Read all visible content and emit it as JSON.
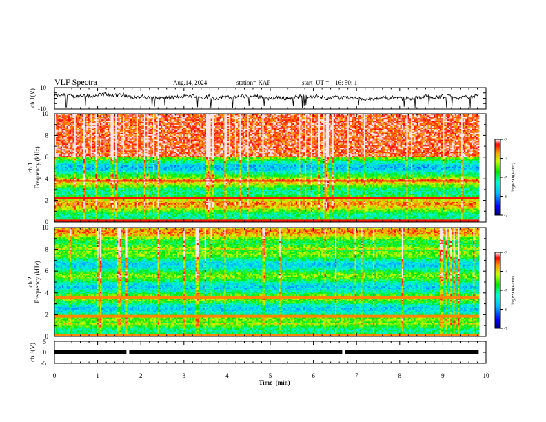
{
  "header": {
    "title": "VLF Spectra",
    "date": "Aug.14, 2024",
    "station": "station= KAP",
    "start": "start  UT =    16: 50: 1"
  },
  "chart_data": [
    {
      "type": "line",
      "panel": "ch1-waveform",
      "ylabel": "ch.1(V)",
      "ylim": [
        -10,
        10
      ],
      "yticks": [
        "10",
        "-10"
      ],
      "xlim": [
        0,
        10
      ],
      "x_end": 9.83,
      "note_series": "noisy waveform, approximately centered near 1 V with excursions to about -9 V"
    },
    {
      "type": "heatmap",
      "panel": "ch1-spectrogram",
      "ylabel_1": "ch.1",
      "ylabel_2": "Frequency (kHz)",
      "ylim": [
        0,
        10
      ],
      "yticks": [
        "0",
        "2",
        "4",
        "6",
        "8",
        "10"
      ],
      "xlim": [
        0,
        10
      ],
      "x_end": 9.83,
      "colorbar": {
        "label": "log(PSD)(V²/Hz)",
        "range": [
          -7,
          -3
        ],
        "ticks": [
          "-3",
          "-4",
          "-5",
          "-6",
          "-7"
        ]
      }
    },
    {
      "type": "heatmap",
      "panel": "ch2-spectrogram",
      "ylabel_1": "ch.2",
      "ylabel_2": "Frequency (kHz)",
      "ylim": [
        0,
        10
      ],
      "yticks": [
        "0",
        "2",
        "4",
        "6",
        "8",
        "10"
      ],
      "xlim": [
        0,
        10
      ],
      "x_end": 9.83,
      "colorbar": {
        "label": "log(PSD)(V²/Hz)",
        "range": [
          -7,
          -3
        ],
        "ticks": [
          "-3",
          "-4",
          "-5",
          "-6",
          "-7"
        ]
      }
    },
    {
      "type": "line",
      "panel": "ch3-signal",
      "ylabel": "ch.3(V)",
      "ylim": [
        -5,
        5
      ],
      "yticks": [
        "5",
        "0",
        "-5"
      ],
      "xlim": [
        0,
        10
      ],
      "x_end": 9.83,
      "level": 0,
      "gaps_min": [
        1.7,
        6.7
      ]
    }
  ],
  "xaxis": {
    "label": "Time  (min)",
    "ticks": [
      "0",
      "1",
      "2",
      "3",
      "4",
      "5",
      "6",
      "7",
      "8",
      "9",
      "10"
    ]
  }
}
